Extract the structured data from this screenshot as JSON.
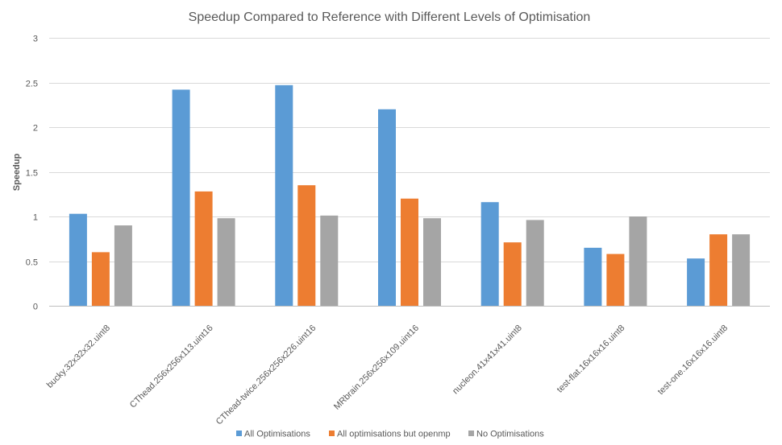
{
  "chart_data": {
    "type": "bar",
    "title": "Speedup Compared to Reference with Different Levels of Optimisation",
    "xlabel": "",
    "ylabel": "Speedup",
    "ylim": [
      0,
      3
    ],
    "yticks": [
      0,
      0.5,
      1,
      1.5,
      2,
      2.5,
      3
    ],
    "ytick_labels": [
      "0",
      "0.5",
      "1",
      "1.5",
      "2",
      "2.5",
      "3"
    ],
    "grid": true,
    "legend_position": "bottom",
    "categories": [
      "bucky.32x32x32.uint8",
      "CThead.256x256x113.uint16",
      "CThead-twice.256x256x226.uint16",
      "MRbrain.256x256x109.uint16",
      "nucleon.41x41x41.uint8",
      "test-flat.16x16x16.uint8",
      "test-one.16x16x16.uint8"
    ],
    "series": [
      {
        "name": "All Optimisations",
        "color": "#5B9BD5",
        "values": [
          1.03,
          2.42,
          2.47,
          2.2,
          1.16,
          0.65,
          0.53
        ]
      },
      {
        "name": "All optimisations but openmp",
        "color": "#ED7D31",
        "values": [
          0.6,
          1.28,
          1.35,
          1.2,
          0.71,
          0.58,
          0.8
        ]
      },
      {
        "name": "No Optimisations",
        "color": "#A5A5A5",
        "values": [
          0.9,
          0.98,
          1.01,
          0.98,
          0.96,
          1.0,
          0.8
        ]
      }
    ]
  }
}
